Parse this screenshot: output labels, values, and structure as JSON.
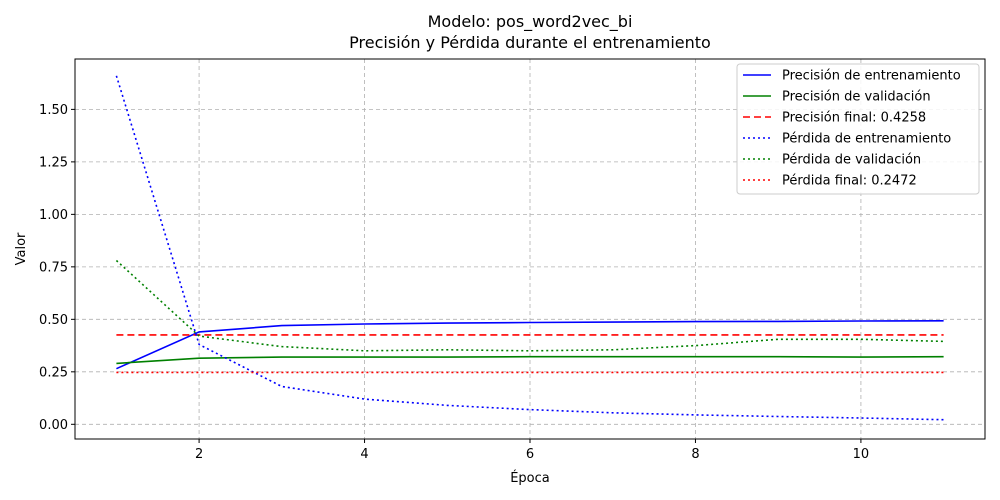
{
  "chart_data": {
    "type": "line",
    "title_line1": "Modelo: pos_word2vec_bi",
    "title_line2": "Precisión y Pérdida durante el entrenamiento",
    "xlabel": "Época",
    "ylabel": "Valor",
    "xlim": [
      0.5,
      11.5
    ],
    "ylim": [
      -0.07,
      1.74
    ],
    "xticks": [
      2,
      4,
      6,
      8,
      10
    ],
    "yticks": [
      0.0,
      0.25,
      0.5,
      0.75,
      1.0,
      1.25,
      1.5
    ],
    "grid": true,
    "legend_position": "top-right",
    "x": [
      1,
      2,
      3,
      4,
      5,
      6,
      7,
      8,
      9,
      10,
      11
    ],
    "series": [
      {
        "name": "Precisión de entrenamiento",
        "style": "solid",
        "color": "#0000ff",
        "values": [
          0.265,
          0.44,
          0.47,
          0.478,
          0.482,
          0.485,
          0.487,
          0.489,
          0.49,
          0.492,
          0.493
        ]
      },
      {
        "name": "Precisión de validación",
        "style": "solid",
        "color": "#008000",
        "values": [
          0.29,
          0.315,
          0.32,
          0.32,
          0.32,
          0.322,
          0.322,
          0.322,
          0.322,
          0.32,
          0.322
        ]
      },
      {
        "name": "Precisión final: 0.4258",
        "style": "dashed",
        "color": "#ff0000",
        "values": [
          0.4258,
          0.4258,
          0.4258,
          0.4258,
          0.4258,
          0.4258,
          0.4258,
          0.4258,
          0.4258,
          0.4258,
          0.4258
        ]
      },
      {
        "name": "Pérdida de entrenamiento",
        "style": "dotted",
        "color": "#0000ff",
        "values": [
          1.66,
          0.38,
          0.18,
          0.12,
          0.09,
          0.07,
          0.055,
          0.045,
          0.037,
          0.03,
          0.022
        ]
      },
      {
        "name": "Pérdida de validación",
        "style": "dotted",
        "color": "#008000",
        "values": [
          0.78,
          0.42,
          0.37,
          0.35,
          0.355,
          0.35,
          0.355,
          0.375,
          0.405,
          0.405,
          0.395
        ]
      },
      {
        "name": "Pérdida final: 0.2472",
        "style": "dotted",
        "color": "#ff0000",
        "values": [
          0.2472,
          0.2472,
          0.2472,
          0.2472,
          0.2472,
          0.2472,
          0.2472,
          0.2472,
          0.2472,
          0.2472,
          0.2472
        ]
      }
    ]
  }
}
